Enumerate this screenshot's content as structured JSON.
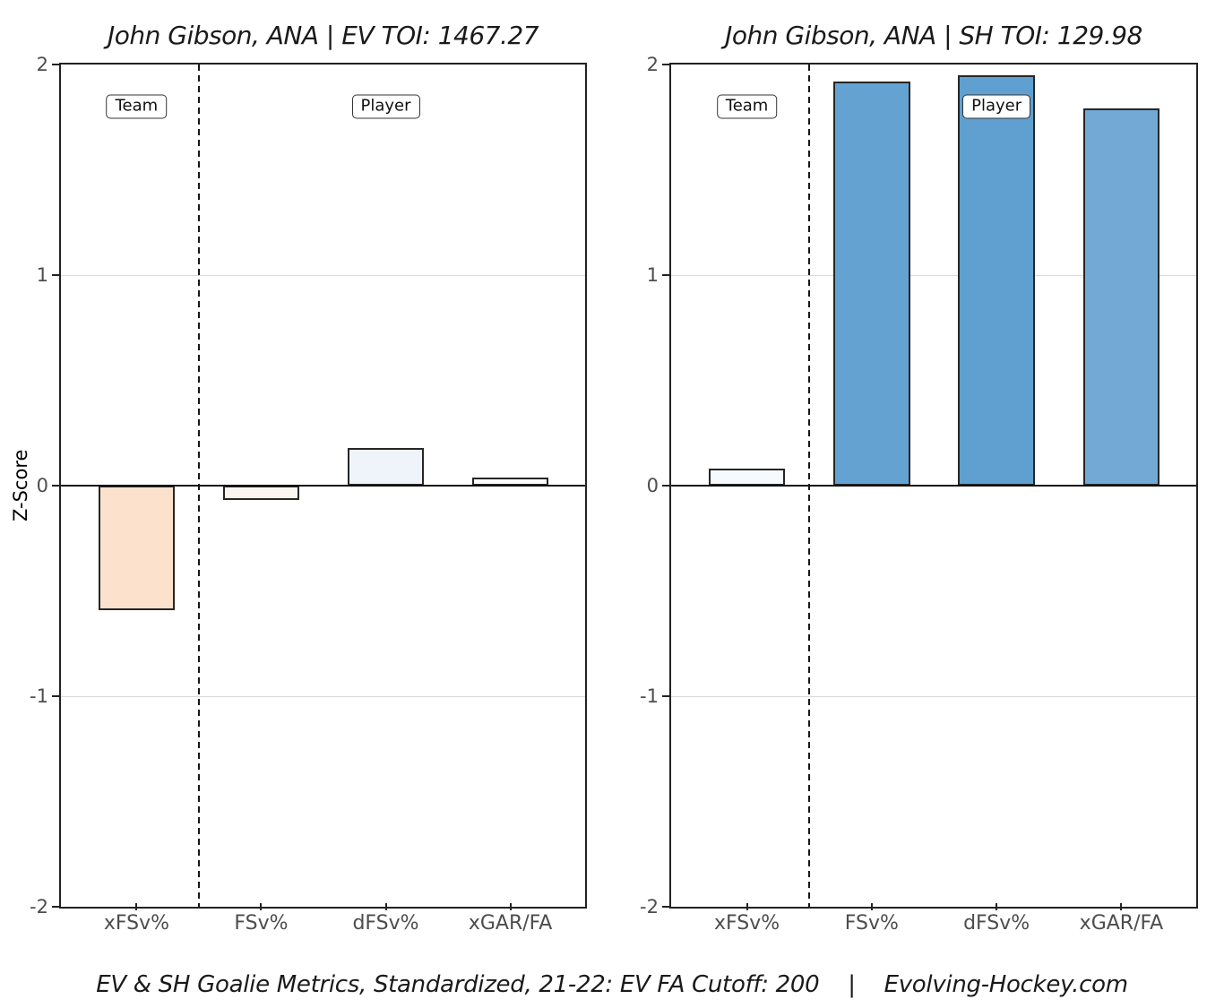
{
  "ylabel": "Z-Score",
  "caption": "EV & SH Goalie Metrics, Standardized, 21-22: EV FA Cutoff: 200    |    Evolving-Hockey.com",
  "colors": {
    "bar_border": "#262626",
    "grid": "#d9d9d9",
    "axis": "#222222",
    "tick_label": "#4d4d4d",
    "title_text": "#1a1a1a",
    "positive_strong": "#5fa0d0",
    "negative_strong": "#fce2cc"
  },
  "chart_data": [
    {
      "type": "bar",
      "title": "John Gibson, ANA | EV TOI: 1467.27",
      "categories": [
        "xFSv%",
        "FSv%",
        "dFSv%",
        "xGAR/FA"
      ],
      "values": [
        -0.59,
        -0.07,
        0.18,
        0.04
      ],
      "bar_colors": [
        "#fce2cc",
        "#fdf6f0",
        "#eef4f9",
        "#fafcfd"
      ],
      "ylim": [
        -2,
        2
      ],
      "yticks": [
        2,
        1,
        0,
        -1,
        -2
      ],
      "grid_y": [
        1,
        -1
      ],
      "zero_line": 0,
      "separator_between": [
        "xFSv%",
        "FSv%"
      ],
      "annotations": [
        {
          "label": "Team",
          "category_index": 0,
          "z": 1.8
        },
        {
          "label": "Player",
          "category_index": 2,
          "z": 1.8
        }
      ]
    },
    {
      "type": "bar",
      "title": "John Gibson, ANA | SH TOI: 129.98",
      "categories": [
        "xFSv%",
        "FSv%",
        "dFSv%",
        "xGAR/FA"
      ],
      "values": [
        0.08,
        1.92,
        1.95,
        1.79
      ],
      "bar_colors": [
        "#f7fafc",
        "#64a2d1",
        "#5fa0d0",
        "#73a9d5"
      ],
      "ylim": [
        -2,
        2
      ],
      "yticks": [
        2,
        1,
        0,
        -1,
        -2
      ],
      "grid_y": [
        1,
        -1
      ],
      "zero_line": 0,
      "separator_between": [
        "xFSv%",
        "FSv%"
      ],
      "annotations": [
        {
          "label": "Team",
          "category_index": 0,
          "z": 1.8
        },
        {
          "label": "Player",
          "category_index": 2,
          "z": 1.8
        }
      ]
    }
  ]
}
